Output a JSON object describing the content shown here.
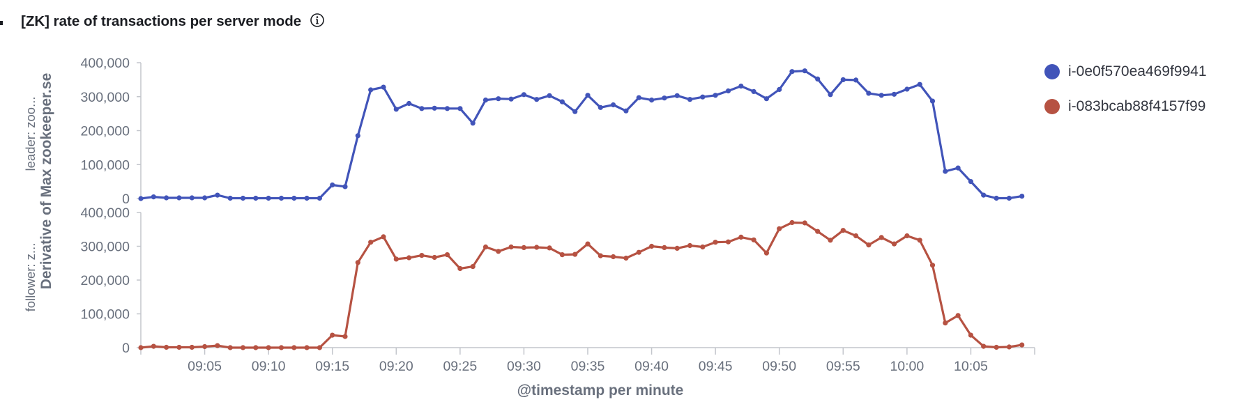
{
  "panel": {
    "title": "[ZK] rate of transactions per server mode",
    "info_icon": "info-circle-icon"
  },
  "colors": {
    "series_1": "#4154b9",
    "series_2": "#b65242",
    "axis": "#c3c6cc",
    "text": "#69707d"
  },
  "chart_data": {
    "type": "line",
    "title": "[ZK] rate of transactions per server mode",
    "xlabel": "@timestamp per minute",
    "ylabel": "Derivative of Max zookeeper.se",
    "panel_labels": [
      "leader: zoo...",
      "follower: z..."
    ],
    "x_ticks": [
      "09:05",
      "09:10",
      "09:15",
      "09:20",
      "09:25",
      "09:30",
      "09:35",
      "09:40",
      "09:45",
      "09:50",
      "09:55",
      "10:00",
      "10:05"
    ],
    "y_ticks": [
      "0",
      "100,000",
      "200,000",
      "300,000",
      "400,000"
    ],
    "ylim": [
      0,
      400000
    ],
    "x_range": [
      "09:00",
      "10:10"
    ],
    "grid": false,
    "legend_position": "right",
    "x": [
      "09:00",
      "09:01",
      "09:02",
      "09:03",
      "09:04",
      "09:05",
      "09:06",
      "09:07",
      "09:08",
      "09:09",
      "09:10",
      "09:11",
      "09:12",
      "09:13",
      "09:14",
      "09:15",
      "09:16",
      "09:17",
      "09:18",
      "09:19",
      "09:20",
      "09:21",
      "09:22",
      "09:23",
      "09:24",
      "09:25",
      "09:26",
      "09:27",
      "09:28",
      "09:29",
      "09:30",
      "09:31",
      "09:32",
      "09:33",
      "09:34",
      "09:35",
      "09:36",
      "09:37",
      "09:38",
      "09:39",
      "09:40",
      "09:41",
      "09:42",
      "09:43",
      "09:44",
      "09:45",
      "09:46",
      "09:47",
      "09:48",
      "09:49",
      "09:50",
      "09:51",
      "09:52",
      "09:53",
      "09:54",
      "09:55",
      "09:56",
      "09:57",
      "09:58",
      "09:59",
      "10:00",
      "10:01",
      "10:02",
      "10:03",
      "10:04",
      "10:05",
      "10:06",
      "10:07",
      "10:08",
      "10:09"
    ],
    "series": [
      {
        "name": "i-0e0f570ea469f9941",
        "panel": "leader: zoo...",
        "color": "#4154b9",
        "values": [
          0,
          5000,
          2000,
          2000,
          2000,
          2000,
          10000,
          1000,
          1000,
          1000,
          1000,
          1000,
          1000,
          1000,
          1000,
          40000,
          35000,
          185000,
          320000,
          328000,
          263000,
          280000,
          265000,
          266000,
          265000,
          265000,
          222000,
          290000,
          294000,
          293000,
          306000,
          292000,
          303000,
          285000,
          256000,
          304000,
          268000,
          276000,
          258000,
          297000,
          290000,
          296000,
          303000,
          292000,
          299000,
          304000,
          317000,
          331000,
          315000,
          294000,
          321000,
          374000,
          376000,
          352000,
          306000,
          350000,
          349000,
          310000,
          304000,
          307000,
          322000,
          336000,
          287000,
          80000,
          90000,
          50000,
          10000,
          1000,
          1000,
          7000
        ]
      },
      {
        "name": "i-083bcab88f4157f99",
        "panel": "follower: z...",
        "color": "#b65242",
        "values": [
          0,
          4000,
          1000,
          1000,
          1000,
          3000,
          6000,
          0,
          0,
          0,
          0,
          0,
          0,
          0,
          0,
          37000,
          33000,
          252000,
          312000,
          328000,
          262000,
          266000,
          273000,
          267000,
          275000,
          234000,
          240000,
          298000,
          285000,
          298000,
          296000,
          297000,
          295000,
          275000,
          276000,
          307000,
          272000,
          269000,
          265000,
          282000,
          300000,
          296000,
          294000,
          302000,
          298000,
          312000,
          313000,
          327000,
          319000,
          280000,
          352000,
          370000,
          369000,
          344000,
          318000,
          347000,
          331000,
          304000,
          326000,
          307000,
          331000,
          318000,
          244000,
          73000,
          95000,
          37000,
          4000,
          1000,
          2000,
          8000
        ]
      }
    ]
  }
}
